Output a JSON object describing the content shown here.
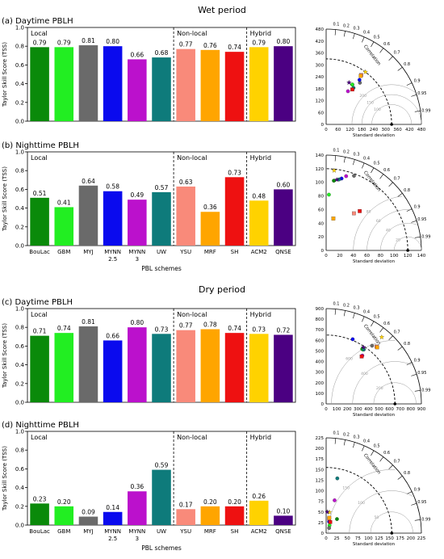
{
  "periods": [
    {
      "title": "Wet period"
    },
    {
      "title": "Dry period"
    }
  ],
  "schemes": [
    "BouLac",
    "GBM",
    "MYJ",
    "MYNN 2.5",
    "MYNN 3",
    "UW",
    "YSU",
    "MRF",
    "SH",
    "ACM2",
    "QNSE"
  ],
  "scheme_colors": [
    "#0a8a0a",
    "#22ee22",
    "#6a6a6a",
    "#0a0aee",
    "#bb11cc",
    "#0e7b7b",
    "#f98a7a",
    "#ffa500",
    "#ee1111",
    "#ffd200",
    "#4b0082"
  ],
  "groups": [
    "Local",
    "Non-local",
    "Hybrid"
  ],
  "chart_data": [
    {
      "type": "bar",
      "title": "(a) Daytime PBLH",
      "ylabel": "Taylor Skill Score (TSS)",
      "xlabel": "",
      "ylim": [
        0,
        1.0
      ],
      "yticks": [
        "0.0",
        "0.2",
        "0.4",
        "0.6",
        "0.8",
        "1.0"
      ],
      "categories": [
        "BouLac",
        "GBM",
        "MYJ",
        "MYNN 2.5",
        "MYNN 3",
        "UW",
        "YSU",
        "MRF",
        "SH",
        "ACM2",
        "QNSE"
      ],
      "values": [
        0.79,
        0.79,
        0.81,
        0.8,
        0.66,
        0.68,
        0.77,
        0.76,
        0.74,
        0.79,
        0.8
      ],
      "labels": [
        "0.79",
        "0.79",
        "0.81",
        "0.80",
        "0.66",
        "0.68",
        "0.77",
        "0.76",
        "0.74",
        "0.79",
        "0.80"
      ],
      "show_xticks": false
    },
    {
      "type": "bar",
      "title": "(b) Nighttime PBLH",
      "ylabel": "Taylor Skill Score (TSS)",
      "xlabel": "PBL schemes",
      "ylim": [
        0,
        1.0
      ],
      "yticks": [
        "0.0",
        "0.2",
        "0.4",
        "0.6",
        "0.8",
        "1.0"
      ],
      "categories": [
        "BouLac",
        "GBM",
        "MYJ",
        "MYNN 2.5",
        "MYNN 3",
        "UW",
        "YSU",
        "MRF",
        "SH",
        "ACM2",
        "QNSE"
      ],
      "values": [
        0.51,
        0.41,
        0.64,
        0.58,
        0.49,
        0.57,
        0.63,
        0.36,
        0.73,
        0.48,
        0.6
      ],
      "labels": [
        "0.51",
        "0.41",
        "0.64",
        "0.58",
        "0.49",
        "0.57",
        "0.63",
        "0.36",
        "0.73",
        "0.48",
        "0.60"
      ],
      "show_xticks": true
    },
    {
      "type": "bar",
      "title": "(c) Daytime PBLH",
      "ylabel": "Taylor Skill Score (TSS)",
      "xlabel": "",
      "ylim": [
        0,
        1.0
      ],
      "yticks": [
        "0.0",
        "0.2",
        "0.4",
        "0.6",
        "0.8",
        "1.0"
      ],
      "categories": [
        "BouLac",
        "GBM",
        "MYJ",
        "MYNN 2.5",
        "MYNN 3",
        "UW",
        "YSU",
        "MRF",
        "SH",
        "ACM2",
        "QNSE"
      ],
      "values": [
        0.71,
        0.74,
        0.81,
        0.66,
        0.8,
        0.73,
        0.77,
        0.78,
        0.74,
        0.73,
        0.72
      ],
      "labels": [
        "0.71",
        "0.74",
        "0.81",
        "0.66",
        "0.80",
        "0.73",
        "0.77",
        "0.78",
        "0.74",
        "0.73",
        "0.72"
      ],
      "show_xticks": false
    },
    {
      "type": "bar",
      "title": "(d) Nighttime PBLH",
      "ylabel": "Taylor Skill Score (TSS)",
      "xlabel": "PBL schemes",
      "ylim": [
        0,
        1.0
      ],
      "yticks": [
        "0.0",
        "0.2",
        "0.4",
        "0.6",
        "0.8",
        "1.0"
      ],
      "categories": [
        "BouLac",
        "GBM",
        "MYJ",
        "MYNN 2.5",
        "MYNN 3",
        "UW",
        "YSU",
        "MRF",
        "SH",
        "ACM2",
        "QNSE"
      ],
      "values": [
        0.23,
        0.2,
        0.09,
        0.14,
        0.36,
        0.59,
        0.17,
        0.2,
        0.2,
        0.26,
        0.1
      ],
      "labels": [
        "0.23",
        "0.20",
        "0.09",
        "0.14",
        "0.36",
        "0.59",
        "0.17",
        "0.20",
        "0.20",
        "0.26",
        "0.10"
      ],
      "show_xticks": true
    },
    {
      "type": "scatter",
      "subtype": "taylor-diagram",
      "xlabel": "Standard deviation",
      "arc_label": "Correlation",
      "max": 480,
      "ref_std": 330,
      "ticks": [
        0,
        60,
        120,
        180,
        240,
        300,
        360,
        420,
        480
      ],
      "corr_ticks": [
        "0.1",
        "0.2",
        "0.3",
        "0.4",
        "0.5",
        "0.6",
        "0.7",
        "0.8",
        "0.9",
        "0.95",
        "0.99"
      ],
      "corr_values": [
        0.1,
        0.2,
        0.3,
        0.4,
        0.5,
        0.6,
        0.7,
        0.8,
        0.9,
        0.95,
        0.99
      ],
      "rms_labels": [
        "100",
        "150",
        "200"
      ],
      "rms_values": [
        100,
        150,
        200
      ],
      "points": [
        {
          "std": 240,
          "corr": 0.55,
          "scheme": "BouLac"
        },
        {
          "std": 240,
          "corr": 0.55,
          "scheme": "GBM"
        },
        {
          "std": 270,
          "corr": 0.63,
          "scheme": "MYJ"
        },
        {
          "std": 280,
          "corr": 0.6,
          "scheme": "MYNN 2.5"
        },
        {
          "std": 200,
          "corr": 0.55,
          "scheme": "MYNN 3"
        },
        {
          "std": 230,
          "corr": 0.6,
          "scheme": "UW"
        },
        {
          "std": 305,
          "corr": 0.58,
          "scheme": "YSU"
        },
        {
          "std": 300,
          "corr": 0.58,
          "scheme": "MRF"
        },
        {
          "std": 220,
          "corr": 0.6,
          "scheme": "SH"
        },
        {
          "std": 330,
          "corr": 0.6,
          "scheme": "ACM2"
        },
        {
          "std": 240,
          "corr": 0.48,
          "scheme": "QNSE"
        }
      ]
    },
    {
      "type": "scatter",
      "subtype": "taylor-diagram",
      "xlabel": "Standard deviation",
      "arc_label": "Correlation",
      "max": 140,
      "ref_std": 120,
      "ticks": [
        0,
        20,
        40,
        60,
        80,
        100,
        120,
        140
      ],
      "corr_ticks": [
        "0.1",
        "0.2",
        "0.3",
        "0.4",
        "0.5",
        "0.6",
        "0.7",
        "0.8",
        "0.9",
        "0.95",
        "0.99"
      ],
      "corr_values": [
        0.1,
        0.2,
        0.3,
        0.4,
        0.5,
        0.6,
        0.7,
        0.8,
        0.9,
        0.95,
        0.99
      ],
      "rms_labels": [
        "20",
        "40",
        "60",
        "80"
      ],
      "rms_values": [
        20,
        40,
        60,
        80
      ],
      "points": [
        {
          "std": 103,
          "corr": 0.11,
          "scheme": "BouLac"
        },
        {
          "std": 82,
          "corr": 0.05,
          "scheme": "GBM"
        },
        {
          "std": 117,
          "corr": 0.35,
          "scheme": "MYJ"
        },
        {
          "std": 108,
          "corr": 0.21,
          "scheme": "MYNN 2.5"
        },
        {
          "std": 113,
          "corr": 0.26,
          "scheme": "MYNN 3"
        },
        {
          "std": 106,
          "corr": 0.18,
          "scheme": "UW"
        },
        {
          "std": 68,
          "corr": 0.6,
          "scheme": "YSU"
        },
        {
          "std": 48,
          "corr": 0.22,
          "scheme": "MRF"
        },
        {
          "std": 76,
          "corr": 0.65,
          "scheme": "SH"
        },
        {
          "std": 118,
          "corr": 0.1,
          "scheme": "ACM2"
        },
        {
          "std": 105,
          "corr": 0.15,
          "scheme": "QNSE"
        }
      ]
    },
    {
      "type": "scatter",
      "subtype": "taylor-diagram",
      "xlabel": "Standard deviation",
      "arc_label": "Correlation",
      "max": 900,
      "ref_std": 650,
      "ticks": [
        0,
        100,
        200,
        300,
        400,
        500,
        600,
        700,
        800,
        900
      ],
      "corr_ticks": [
        "0.1",
        "0.2",
        "0.3",
        "0.4",
        "0.5",
        "0.6",
        "0.7",
        "0.8",
        "0.9",
        "0.95",
        "0.99"
      ],
      "corr_values": [
        0.1,
        0.2,
        0.3,
        0.4,
        0.5,
        0.6,
        0.7,
        0.8,
        0.9,
        0.95,
        0.99
      ],
      "rms_labels": [
        "200",
        "400",
        "600"
      ],
      "rms_values": [
        200,
        400,
        600
      ],
      "points": [
        {
          "std": 620,
          "corr": 0.55,
          "scheme": "BouLac"
        },
        {
          "std": 620,
          "corr": 0.56,
          "scheme": "GBM"
        },
        {
          "std": 700,
          "corr": 0.62,
          "scheme": "MYJ"
        },
        {
          "std": 660,
          "corr": 0.38,
          "scheme": "MYNN 2.5"
        },
        {
          "std": 570,
          "corr": 0.6,
          "scheme": "MYNN 3"
        },
        {
          "std": 625,
          "corr": 0.57,
          "scheme": "UW"
        },
        {
          "std": 720,
          "corr": 0.66,
          "scheme": "YSU"
        },
        {
          "std": 720,
          "corr": 0.67,
          "scheme": "MRF"
        },
        {
          "std": 560,
          "corr": 0.6,
          "scheme": "SH"
        },
        {
          "std": 820,
          "corr": 0.64,
          "scheme": "ACM2"
        },
        {
          "std": 640,
          "corr": 0.55,
          "scheme": "QNSE"
        }
      ]
    },
    {
      "type": "scatter",
      "subtype": "taylor-diagram",
      "xlabel": "Standard deviation",
      "arc_label": "Correlation",
      "max": 225,
      "ref_std": 155,
      "ticks": [
        0,
        25,
        50,
        75,
        100,
        125,
        150,
        175,
        200,
        225
      ],
      "corr_ticks": [
        "0.1",
        "0.2",
        "0.3",
        "0.4",
        "0.5",
        "0.6",
        "0.7",
        "0.8",
        "0.9",
        "0.95",
        "0.99"
      ],
      "corr_values": [
        0.1,
        0.2,
        0.3,
        0.4,
        0.5,
        0.6,
        0.7,
        0.8,
        0.9,
        0.95,
        0.99
      ],
      "rms_labels": [
        "50",
        "100",
        "150"
      ],
      "rms_values": [
        50,
        100,
        150
      ],
      "points": [
        {
          "std": 42,
          "corr": 0.61,
          "scheme": "BouLac"
        },
        {
          "std": 20,
          "corr": 0.4,
          "scheme": "GBM"
        },
        {
          "std": 14,
          "corr": 0.5,
          "scheme": "MYJ"
        },
        {
          "std": 28,
          "corr": 0.25,
          "scheme": "MYNN 2.5"
        },
        {
          "std": 80,
          "corr": 0.25,
          "scheme": "MYNN 3"
        },
        {
          "std": 132,
          "corr": 0.2,
          "scheme": "UW"
        },
        {
          "std": 35,
          "corr": 0.2,
          "scheme": "YSU"
        },
        {
          "std": 37,
          "corr": 0.2,
          "scheme": "MRF"
        },
        {
          "std": 28,
          "corr": 0.35,
          "scheme": "SH"
        },
        {
          "std": 50,
          "corr": 0.15,
          "scheme": "ACM2"
        },
        {
          "std": 50,
          "corr": 0.05,
          "scheme": "QNSE"
        }
      ]
    }
  ]
}
